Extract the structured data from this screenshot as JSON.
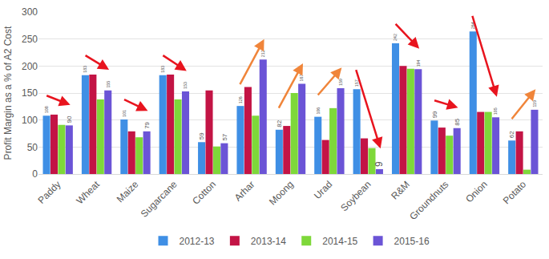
{
  "chart_data": {
    "type": "bar",
    "y_label": "Profit Margin as a % of A2 Cost",
    "categories": [
      "Paddy",
      "Wheat",
      "Maize",
      "Sugarcane",
      "Cotton",
      "Arhar",
      "Moong",
      "Urad",
      "Soybean",
      "R&M",
      "Groundnuts",
      "Onion",
      "Potato"
    ],
    "series": [
      {
        "name": "2012-13",
        "color": "#3f8fe5",
        "data_labels": true,
        "values": [
          108,
          183,
          101,
          183,
          59,
          126,
          82,
          106,
          157,
          242,
          99,
          264,
          62
        ]
      },
      {
        "name": "2013-14",
        "color": "#c31445",
        "data_labels": false,
        "values": [
          110,
          184,
          79,
          184,
          155,
          161,
          89,
          63,
          66,
          200,
          86,
          115,
          79
        ]
      },
      {
        "name": "2014-15",
        "color": "#7ed83a",
        "data_labels": false,
        "values": [
          91,
          138,
          68,
          138,
          51,
          108,
          150,
          122,
          48,
          195,
          71,
          115,
          8
        ]
      },
      {
        "name": "2015-16",
        "color": "#6b54d6",
        "data_labels": true,
        "values": [
          90,
          155,
          79,
          153,
          57,
          212,
          167,
          159,
          9,
          194,
          85,
          105,
          119
        ]
      }
    ],
    "ylim": [
      0,
      300
    ],
    "yticks": [
      0,
      50,
      100,
      150,
      200,
      250,
      300
    ],
    "grid": true,
    "legend": "bottom"
  }
}
